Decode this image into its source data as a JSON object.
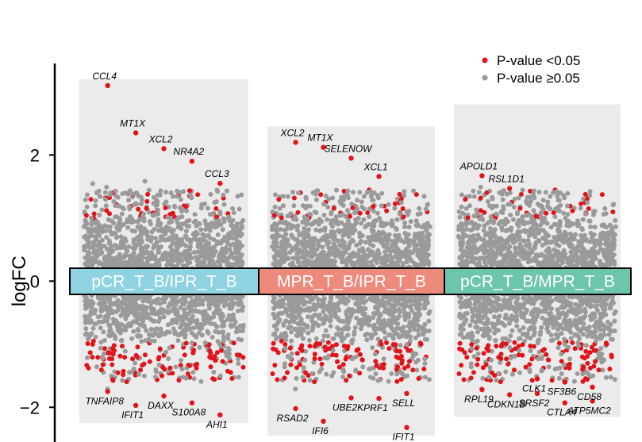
{
  "chart_data": {
    "type": "scatter",
    "ylabel": "logFC",
    "yticks": [
      -2,
      0,
      2
    ],
    "ylim": [
      -2.55,
      3.45
    ],
    "colors": {
      "significant": "#e0141a",
      "nonsignificant": "#9a9a9a",
      "panel": "#ebebeb"
    },
    "legend": {
      "placement": "top-right",
      "entries": [
        {
          "label": "P-value <0.05",
          "color": "#e0141a"
        },
        {
          "label": "P-value ≥0.05",
          "color": "#9a9a9a"
        }
      ]
    },
    "groups": [
      {
        "label": "pCR_T_B/IPR_T_B",
        "color": "#8fd3e3",
        "range": [
          -2.15,
          3.1
        ],
        "genes": [
          {
            "name": "CCL4",
            "logFC": 3.1
          },
          {
            "name": "MT1X",
            "logFC": 2.35
          },
          {
            "name": "XCL2",
            "logFC": 2.1
          },
          {
            "name": "NR4A2",
            "logFC": 1.9
          },
          {
            "name": "CCL3",
            "logFC": 1.55
          },
          {
            "name": "TNFAIP8",
            "logFC": -1.75
          },
          {
            "name": "IFIT1",
            "logFC": -1.97
          },
          {
            "name": "DAXX",
            "logFC": -1.82
          },
          {
            "name": "S100A8",
            "logFC": -1.93
          },
          {
            "name": "AHI1",
            "logFC": -2.12
          }
        ]
      },
      {
        "label": "MPR_T_B/IPR_T_B",
        "color": "#ec8a7c",
        "range": [
          -2.35,
          2.35
        ],
        "genes": [
          {
            "name": "XCL2",
            "logFC": 2.2
          },
          {
            "name": "MT1X",
            "logFC": 2.12
          },
          {
            "name": "SELENOW",
            "logFC": 1.95
          },
          {
            "name": "XCL1",
            "logFC": 1.66
          },
          {
            "name": "SELL",
            "logFC": -1.78
          },
          {
            "name": "RSAD2",
            "logFC": -2.02
          },
          {
            "name": "IFI6",
            "logFC": -2.22
          },
          {
            "name": "UBE2K",
            "logFC": -1.85
          },
          {
            "name": "PRF1",
            "logFC": -1.86
          },
          {
            "name": "IFIT1",
            "logFC": -2.32
          }
        ]
      },
      {
        "label": "pCR_T_B/MPR_T_B",
        "color": "#6dc5ad",
        "range": [
          -2.05,
          2.7
        ],
        "genes": [
          {
            "name": "APOLD1",
            "logFC": 1.67
          },
          {
            "name": "RSL1D1",
            "logFC": 1.47
          },
          {
            "name": "CLK1",
            "logFC": -1.55
          },
          {
            "name": "SF3B6",
            "logFC": -1.6
          },
          {
            "name": "CD58",
            "logFC": -1.68
          },
          {
            "name": "RPL19",
            "logFC": -1.72
          },
          {
            "name": "CDKN1B",
            "logFC": -1.8
          },
          {
            "name": "SRSF2",
            "logFC": -1.78
          },
          {
            "name": "CTLA4",
            "logFC": -1.93
          },
          {
            "name": "ATP5MC2",
            "logFC": -1.9
          }
        ]
      }
    ]
  }
}
